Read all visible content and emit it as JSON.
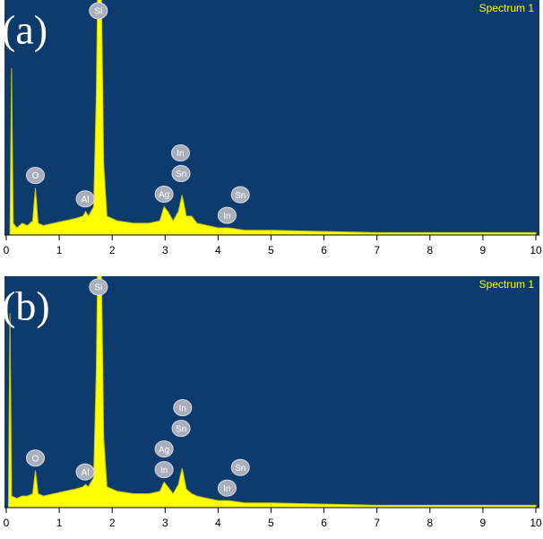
{
  "chart_data": [
    {
      "type": "area",
      "panel_label": "(a)",
      "xlim": [
        0,
        10
      ],
      "ylim": [
        0,
        100
      ],
      "xticks": [
        0,
        1,
        2,
        3,
        4,
        5,
        6,
        7,
        8,
        9,
        10
      ],
      "x": [
        0,
        0.07,
        0.1,
        0.13,
        0.2,
        0.3,
        0.4,
        0.5,
        0.55,
        0.6,
        0.7,
        0.9,
        1.1,
        1.3,
        1.45,
        1.5,
        1.55,
        1.65,
        1.7,
        1.74,
        1.78,
        1.84,
        1.9,
        2.1,
        2.4,
        2.7,
        2.9,
        2.98,
        3.05,
        3.15,
        3.25,
        3.32,
        3.4,
        3.5,
        3.6,
        3.8,
        4.0,
        4.2,
        4.5,
        5,
        6,
        7,
        8,
        9,
        10
      ],
      "series": [
        {
          "name": "Spectrum 1",
          "color": "#ffff00",
          "values": [
            0,
            0,
            71,
            5,
            3,
            5,
            4,
            6,
            20,
            5,
            4,
            5,
            6,
            7,
            8,
            10,
            8,
            12,
            60,
            130,
            130,
            30,
            8,
            6,
            5,
            5,
            6,
            12,
            10,
            6,
            10,
            17,
            8,
            8,
            5,
            4,
            3,
            3,
            2,
            2,
            1.5,
            1,
            1,
            1,
            1
          ]
        }
      ],
      "peaks": [
        {
          "label": "O",
          "x": 0.55
        },
        {
          "label": "Al",
          "x": 1.49
        },
        {
          "label": "Si",
          "x": 1.74
        },
        {
          "label": "Ag",
          "x": 2.98
        },
        {
          "label": "Sn",
          "x": 3.3
        },
        {
          "label": "In",
          "x": 3.29
        },
        {
          "label": "In",
          "x": 4.17
        },
        {
          "label": "Sn",
          "x": 4.42
        }
      ]
    },
    {
      "type": "area",
      "panel_label": "(b)",
      "xlim": [
        0,
        10
      ],
      "ylim": [
        0,
        100
      ],
      "xticks": [
        0,
        1,
        2,
        3,
        4,
        5,
        6,
        7,
        8,
        9,
        10
      ],
      "x": [
        0,
        0.04,
        0.07,
        0.1,
        0.2,
        0.3,
        0.4,
        0.5,
        0.55,
        0.6,
        0.7,
        0.9,
        1.1,
        1.3,
        1.45,
        1.5,
        1.55,
        1.65,
        1.7,
        1.74,
        1.78,
        1.84,
        1.9,
        2.1,
        2.4,
        2.7,
        2.9,
        2.98,
        3.05,
        3.15,
        3.25,
        3.32,
        3.4,
        3.5,
        3.6,
        3.8,
        4.0,
        4.2,
        4.5,
        5,
        6,
        7,
        8,
        9,
        10
      ],
      "series": [
        {
          "name": "Spectrum 1",
          "color": "#ffff00",
          "values": [
            0,
            0,
            84,
            5,
            4,
            5,
            5,
            6,
            16,
            6,
            5,
            6,
            7,
            8,
            9,
            10,
            9,
            13,
            60,
            130,
            130,
            30,
            9,
            7,
            6,
            6,
            7,
            11,
            9,
            6,
            10,
            17,
            8,
            6,
            5,
            4,
            3,
            3,
            2,
            2,
            1.5,
            1,
            1,
            1,
            1
          ]
        }
      ],
      "peaks": [
        {
          "label": "O",
          "x": 0.55
        },
        {
          "label": "Al",
          "x": 1.49
        },
        {
          "label": "Si",
          "x": 1.74
        },
        {
          "label": "In",
          "x": 2.98
        },
        {
          "label": "Ag",
          "x": 2.98
        },
        {
          "label": "Sn",
          "x": 3.3
        },
        {
          "label": "In",
          "x": 3.33
        },
        {
          "label": "In",
          "x": 4.17
        },
        {
          "label": "Sn",
          "x": 4.42
        }
      ]
    }
  ]
}
